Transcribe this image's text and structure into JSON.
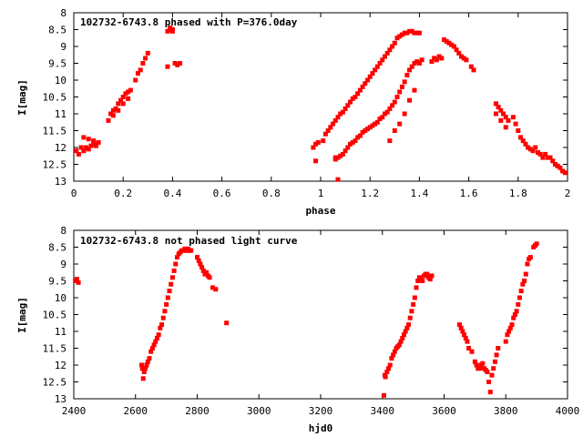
{
  "chart_data": [
    {
      "type": "scatter",
      "title": "102732-6743.8 phased with P=376.0day",
      "xlabel": "phase",
      "ylabel": "I[mag]",
      "xlim": [
        0,
        2
      ],
      "ylim": [
        13,
        8
      ],
      "y_inverted": true,
      "grid": false,
      "marker_color": "#ff0000",
      "marker": "filled-square",
      "xticks": [
        0,
        0.2,
        0.4,
        0.6,
        0.8,
        1,
        1.2,
        1.4,
        1.6,
        1.8,
        2
      ],
      "xtick_labels": [
        "0",
        "0.2",
        "0.4",
        "0.6",
        "0.8",
        "1",
        "1.2",
        "1.4",
        "1.6",
        "1.8",
        "2"
      ],
      "yticks": [
        8,
        8.5,
        9,
        9.5,
        10,
        10.5,
        11,
        11.5,
        12,
        12.5,
        13
      ],
      "ytick_labels": [
        "8",
        "8.5",
        "9",
        "9.5",
        "10",
        "10.5",
        "11",
        "11.5",
        "12",
        "12.5",
        "13"
      ],
      "series": [
        {
          "x": [
            0.01,
            0.02,
            0.03,
            0.04,
            0.05,
            0.06,
            0.07,
            0.08,
            0.09,
            0.04,
            0.06,
            0.08,
            0.09,
            0.1,
            0.14,
            0.15,
            0.16,
            0.17,
            0.18,
            0.19,
            0.2,
            0.21,
            0.22,
            0.23,
            0.16,
            0.18,
            0.2,
            0.22,
            0.25,
            0.26,
            0.27,
            0.28,
            0.29,
            0.3,
            0.38,
            0.39,
            0.4,
            0.41,
            0.42,
            0.43,
            0.38,
            0.39,
            0.4,
            0.97,
            0.98,
            0.99,
            1.01,
            1.02,
            1.03,
            1.04,
            1.05,
            1.06,
            1.07,
            1.08,
            1.09,
            1.1,
            1.11,
            1.12,
            1.13,
            1.14,
            1.15,
            1.16,
            1.17,
            1.18,
            1.19,
            1.2,
            1.21,
            1.22,
            1.23,
            1.24,
            1.25,
            1.26,
            1.27,
            1.28,
            1.29,
            1.3,
            1.31,
            1.32,
            1.33,
            1.34,
            1.35,
            1.36,
            1.37,
            1.38,
            1.39,
            1.4,
            1.06,
            1.07,
            1.08,
            1.09,
            1.1,
            1.11,
            1.12,
            1.13,
            1.14,
            1.15,
            1.16,
            1.17,
            1.18,
            1.19,
            1.2,
            1.21,
            1.22,
            1.23,
            1.24,
            1.25,
            1.26,
            1.27,
            1.28,
            1.29,
            1.3,
            1.31,
            1.32,
            1.33,
            1.34,
            1.35,
            1.36,
            1.37,
            1.38,
            1.39,
            1.28,
            1.3,
            1.32,
            1.34,
            1.36,
            1.38,
            1.4,
            1.41,
            1.45,
            1.46,
            1.47,
            1.48,
            1.49,
            1.5,
            1.51,
            1.52,
            1.53,
            1.54,
            1.55,
            1.56,
            1.57,
            1.58,
            1.59,
            1.61,
            1.62,
            1.71,
            1.72,
            1.73,
            1.74,
            1.75,
            1.76,
            1.78,
            1.79,
            1.8,
            1.81,
            1.82,
            1.83,
            1.84,
            1.85,
            1.86,
            1.87,
            1.88,
            1.89,
            1.9,
            1.91,
            1.92,
            1.93,
            1.94,
            1.95,
            1.96,
            1.97,
            1.98,
            1.99,
            1.71,
            1.73,
            1.75,
            1.06,
            0.98,
            1.07
          ],
          "y": [
            12.1,
            12.2,
            12.0,
            12.1,
            12.0,
            12.05,
            11.95,
            11.9,
            11.95,
            11.7,
            11.75,
            11.8,
            11.9,
            11.85,
            11.2,
            11.0,
            10.9,
            10.85,
            10.7,
            10.6,
            10.5,
            10.4,
            10.35,
            10.3,
            11.05,
            10.9,
            10.7,
            10.55,
            10.0,
            9.8,
            9.7,
            9.5,
            9.35,
            9.2,
            8.55,
            8.45,
            8.5,
            9.5,
            9.55,
            9.5,
            9.6,
            8.5,
            8.55,
            12.0,
            11.9,
            11.85,
            11.8,
            11.6,
            11.5,
            11.4,
            11.3,
            11.2,
            11.1,
            11.0,
            10.95,
            10.85,
            10.75,
            10.65,
            10.55,
            10.5,
            10.4,
            10.3,
            10.2,
            10.1,
            10.0,
            9.9,
            9.8,
            9.7,
            9.6,
            9.5,
            9.4,
            9.3,
            9.2,
            9.1,
            9.0,
            8.9,
            8.75,
            8.7,
            8.65,
            8.6,
            8.6,
            8.55,
            8.55,
            8.6,
            8.6,
            8.6,
            12.3,
            12.3,
            12.25,
            12.2,
            12.1,
            12.0,
            11.9,
            11.85,
            11.8,
            11.7,
            11.65,
            11.55,
            11.5,
            11.45,
            11.4,
            11.35,
            11.3,
            11.25,
            11.15,
            11.1,
            11.0,
            10.95,
            10.85,
            10.75,
            10.65,
            10.5,
            10.35,
            10.2,
            10.05,
            9.85,
            9.7,
            9.6,
            9.5,
            9.45,
            11.8,
            11.5,
            11.3,
            11.0,
            10.6,
            10.3,
            9.5,
            9.4,
            9.45,
            9.35,
            9.4,
            9.3,
            9.35,
            8.8,
            8.85,
            8.9,
            8.95,
            9.0,
            9.1,
            9.2,
            9.3,
            9.35,
            9.4,
            9.6,
            9.7,
            10.7,
            10.8,
            10.9,
            11.0,
            11.1,
            11.2,
            11.1,
            11.3,
            11.5,
            11.7,
            11.8,
            11.9,
            12.0,
            12.05,
            12.1,
            12.0,
            12.15,
            12.2,
            12.3,
            12.2,
            12.3,
            12.3,
            12.4,
            12.5,
            12.55,
            12.6,
            12.7,
            12.75,
            11.0,
            11.2,
            11.4,
            12.35,
            12.4,
            12.95
          ]
        }
      ]
    },
    {
      "type": "scatter",
      "title": "102732-6743.8 not phased light curve",
      "xlabel": "hjd0",
      "ylabel": "I[mag]",
      "xlim": [
        2400,
        4000
      ],
      "ylim": [
        13,
        8
      ],
      "y_inverted": true,
      "grid": false,
      "marker_color": "#ff0000",
      "marker": "filled-square",
      "xticks": [
        2400,
        2600,
        2800,
        3000,
        3200,
        3400,
        3600,
        3800,
        4000
      ],
      "xtick_labels": [
        "2400",
        "2600",
        "2800",
        "3000",
        "3200",
        "3400",
        "3600",
        "3800",
        "4000"
      ],
      "yticks": [
        8,
        8.5,
        9,
        9.5,
        10,
        10.5,
        11,
        11.5,
        12,
        12.5,
        13
      ],
      "ytick_labels": [
        "8",
        "8.5",
        "9",
        "9.5",
        "10",
        "10.5",
        "11",
        "11.5",
        "12",
        "12.5",
        "13"
      ],
      "series": [
        {
          "x": [
            2405,
            2410,
            2415,
            2620,
            2622,
            2625,
            2628,
            2632,
            2636,
            2640,
            2645,
            2650,
            2655,
            2660,
            2665,
            2670,
            2675,
            2680,
            2685,
            2690,
            2695,
            2700,
            2705,
            2710,
            2715,
            2720,
            2725,
            2730,
            2735,
            2740,
            2745,
            2750,
            2755,
            2760,
            2765,
            2770,
            2775,
            2780,
            2800,
            2805,
            2810,
            2815,
            2820,
            2825,
            2830,
            2835,
            2840,
            2850,
            2860,
            2895,
            3405,
            3408,
            3410,
            3415,
            3420,
            3425,
            3430,
            3435,
            3440,
            3445,
            3450,
            3455,
            3460,
            3465,
            3470,
            3475,
            3480,
            3485,
            3490,
            3495,
            3500,
            3505,
            3510,
            3515,
            3520,
            3525,
            3530,
            3535,
            3540,
            3545,
            3550,
            3555,
            3560,
            3650,
            3655,
            3660,
            3665,
            3670,
            3675,
            3680,
            3690,
            3700,
            3705,
            3710,
            3715,
            3720,
            3725,
            3730,
            3735,
            3740,
            3745,
            3750,
            3755,
            3760,
            3765,
            3770,
            3775,
            3800,
            3805,
            3810,
            3815,
            3820,
            3825,
            3830,
            3835,
            3840,
            3845,
            3850,
            3855,
            3860,
            3865,
            3870,
            3875,
            3880,
            3890,
            3895,
            3900
          ],
          "y": [
            9.5,
            9.45,
            9.55,
            12.0,
            12.1,
            12.4,
            12.2,
            12.1,
            12.0,
            11.9,
            11.8,
            11.6,
            11.5,
            11.4,
            11.3,
            11.2,
            11.1,
            10.9,
            10.8,
            10.6,
            10.4,
            10.2,
            10.0,
            9.8,
            9.6,
            9.4,
            9.2,
            9.0,
            8.8,
            8.7,
            8.65,
            8.6,
            8.6,
            8.55,
            8.6,
            8.55,
            8.6,
            8.6,
            8.8,
            8.9,
            9.0,
            9.1,
            9.2,
            9.3,
            9.25,
            9.35,
            9.4,
            9.7,
            9.75,
            10.75,
            12.9,
            12.3,
            12.35,
            12.2,
            12.1,
            12.0,
            11.8,
            11.7,
            11.6,
            11.5,
            11.45,
            11.4,
            11.3,
            11.2,
            11.1,
            11.0,
            10.9,
            10.8,
            10.6,
            10.4,
            10.2,
            10.0,
            9.7,
            9.5,
            9.4,
            9.45,
            9.5,
            9.35,
            9.3,
            9.3,
            9.4,
            9.45,
            9.35,
            10.8,
            10.9,
            11.0,
            11.1,
            11.2,
            11.3,
            11.5,
            11.6,
            11.9,
            12.0,
            12.1,
            12.1,
            12.0,
            11.95,
            12.1,
            12.15,
            12.2,
            12.5,
            12.8,
            12.3,
            12.1,
            11.9,
            11.7,
            11.5,
            11.3,
            11.1,
            11.0,
            10.9,
            10.8,
            10.6,
            10.5,
            10.4,
            10.2,
            10.0,
            9.8,
            9.6,
            9.5,
            9.3,
            9.0,
            8.85,
            8.8,
            8.5,
            8.45,
            8.4
          ]
        }
      ]
    }
  ]
}
